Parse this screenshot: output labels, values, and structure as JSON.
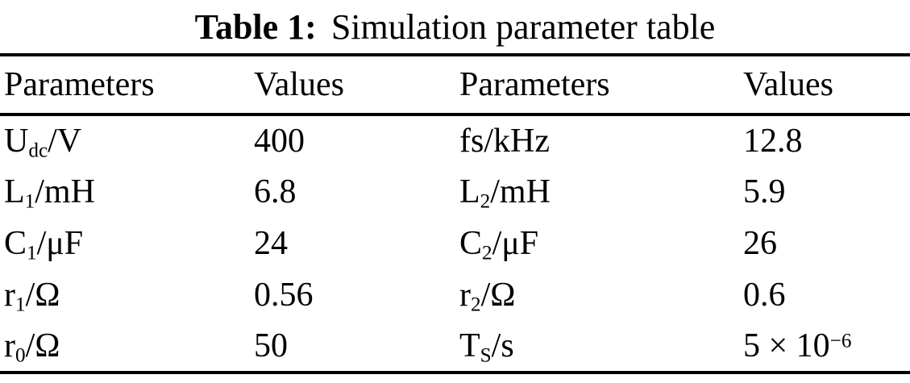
{
  "title": {
    "label": "Table 1:",
    "caption": "Simulation parameter table"
  },
  "table": {
    "headers": [
      "Parameters",
      "Values",
      "Parameters",
      "Values"
    ],
    "rows": [
      {
        "cells": [
          [
            {
              "t": "U"
            },
            {
              "sub": "dc"
            },
            {
              "t": "/V"
            }
          ],
          [
            {
              "t": "400"
            }
          ],
          [
            {
              "t": "fs/kHz"
            }
          ],
          [
            {
              "t": "12.8"
            }
          ]
        ]
      },
      {
        "cells": [
          [
            {
              "t": "L"
            },
            {
              "sub": "1"
            },
            {
              "t": "/mH"
            }
          ],
          [
            {
              "t": "6.8"
            }
          ],
          [
            {
              "t": "L"
            },
            {
              "sub": "2"
            },
            {
              "t": "/mH"
            }
          ],
          [
            {
              "t": "5.9"
            }
          ]
        ]
      },
      {
        "cells": [
          [
            {
              "t": "C"
            },
            {
              "sub": "1"
            },
            {
              "t": "/μF"
            }
          ],
          [
            {
              "t": "24"
            }
          ],
          [
            {
              "t": "C"
            },
            {
              "sub": "2"
            },
            {
              "t": "/μF"
            }
          ],
          [
            {
              "t": "26"
            }
          ]
        ]
      },
      {
        "cells": [
          [
            {
              "t": "r"
            },
            {
              "sub": "1"
            },
            {
              "t": "/Ω"
            }
          ],
          [
            {
              "t": "0.56"
            }
          ],
          [
            {
              "t": "r"
            },
            {
              "sub": "2"
            },
            {
              "t": "/Ω"
            }
          ],
          [
            {
              "t": "0.6"
            }
          ]
        ]
      },
      {
        "cells": [
          [
            {
              "t": "r"
            },
            {
              "sub": "0"
            },
            {
              "t": "/Ω"
            }
          ],
          [
            {
              "t": "50"
            }
          ],
          [
            {
              "t": "T"
            },
            {
              "sub": "S"
            },
            {
              "t": "/s"
            }
          ],
          [
            {
              "t": "5 × 10"
            },
            {
              "sup": "−6"
            }
          ]
        ]
      }
    ]
  }
}
